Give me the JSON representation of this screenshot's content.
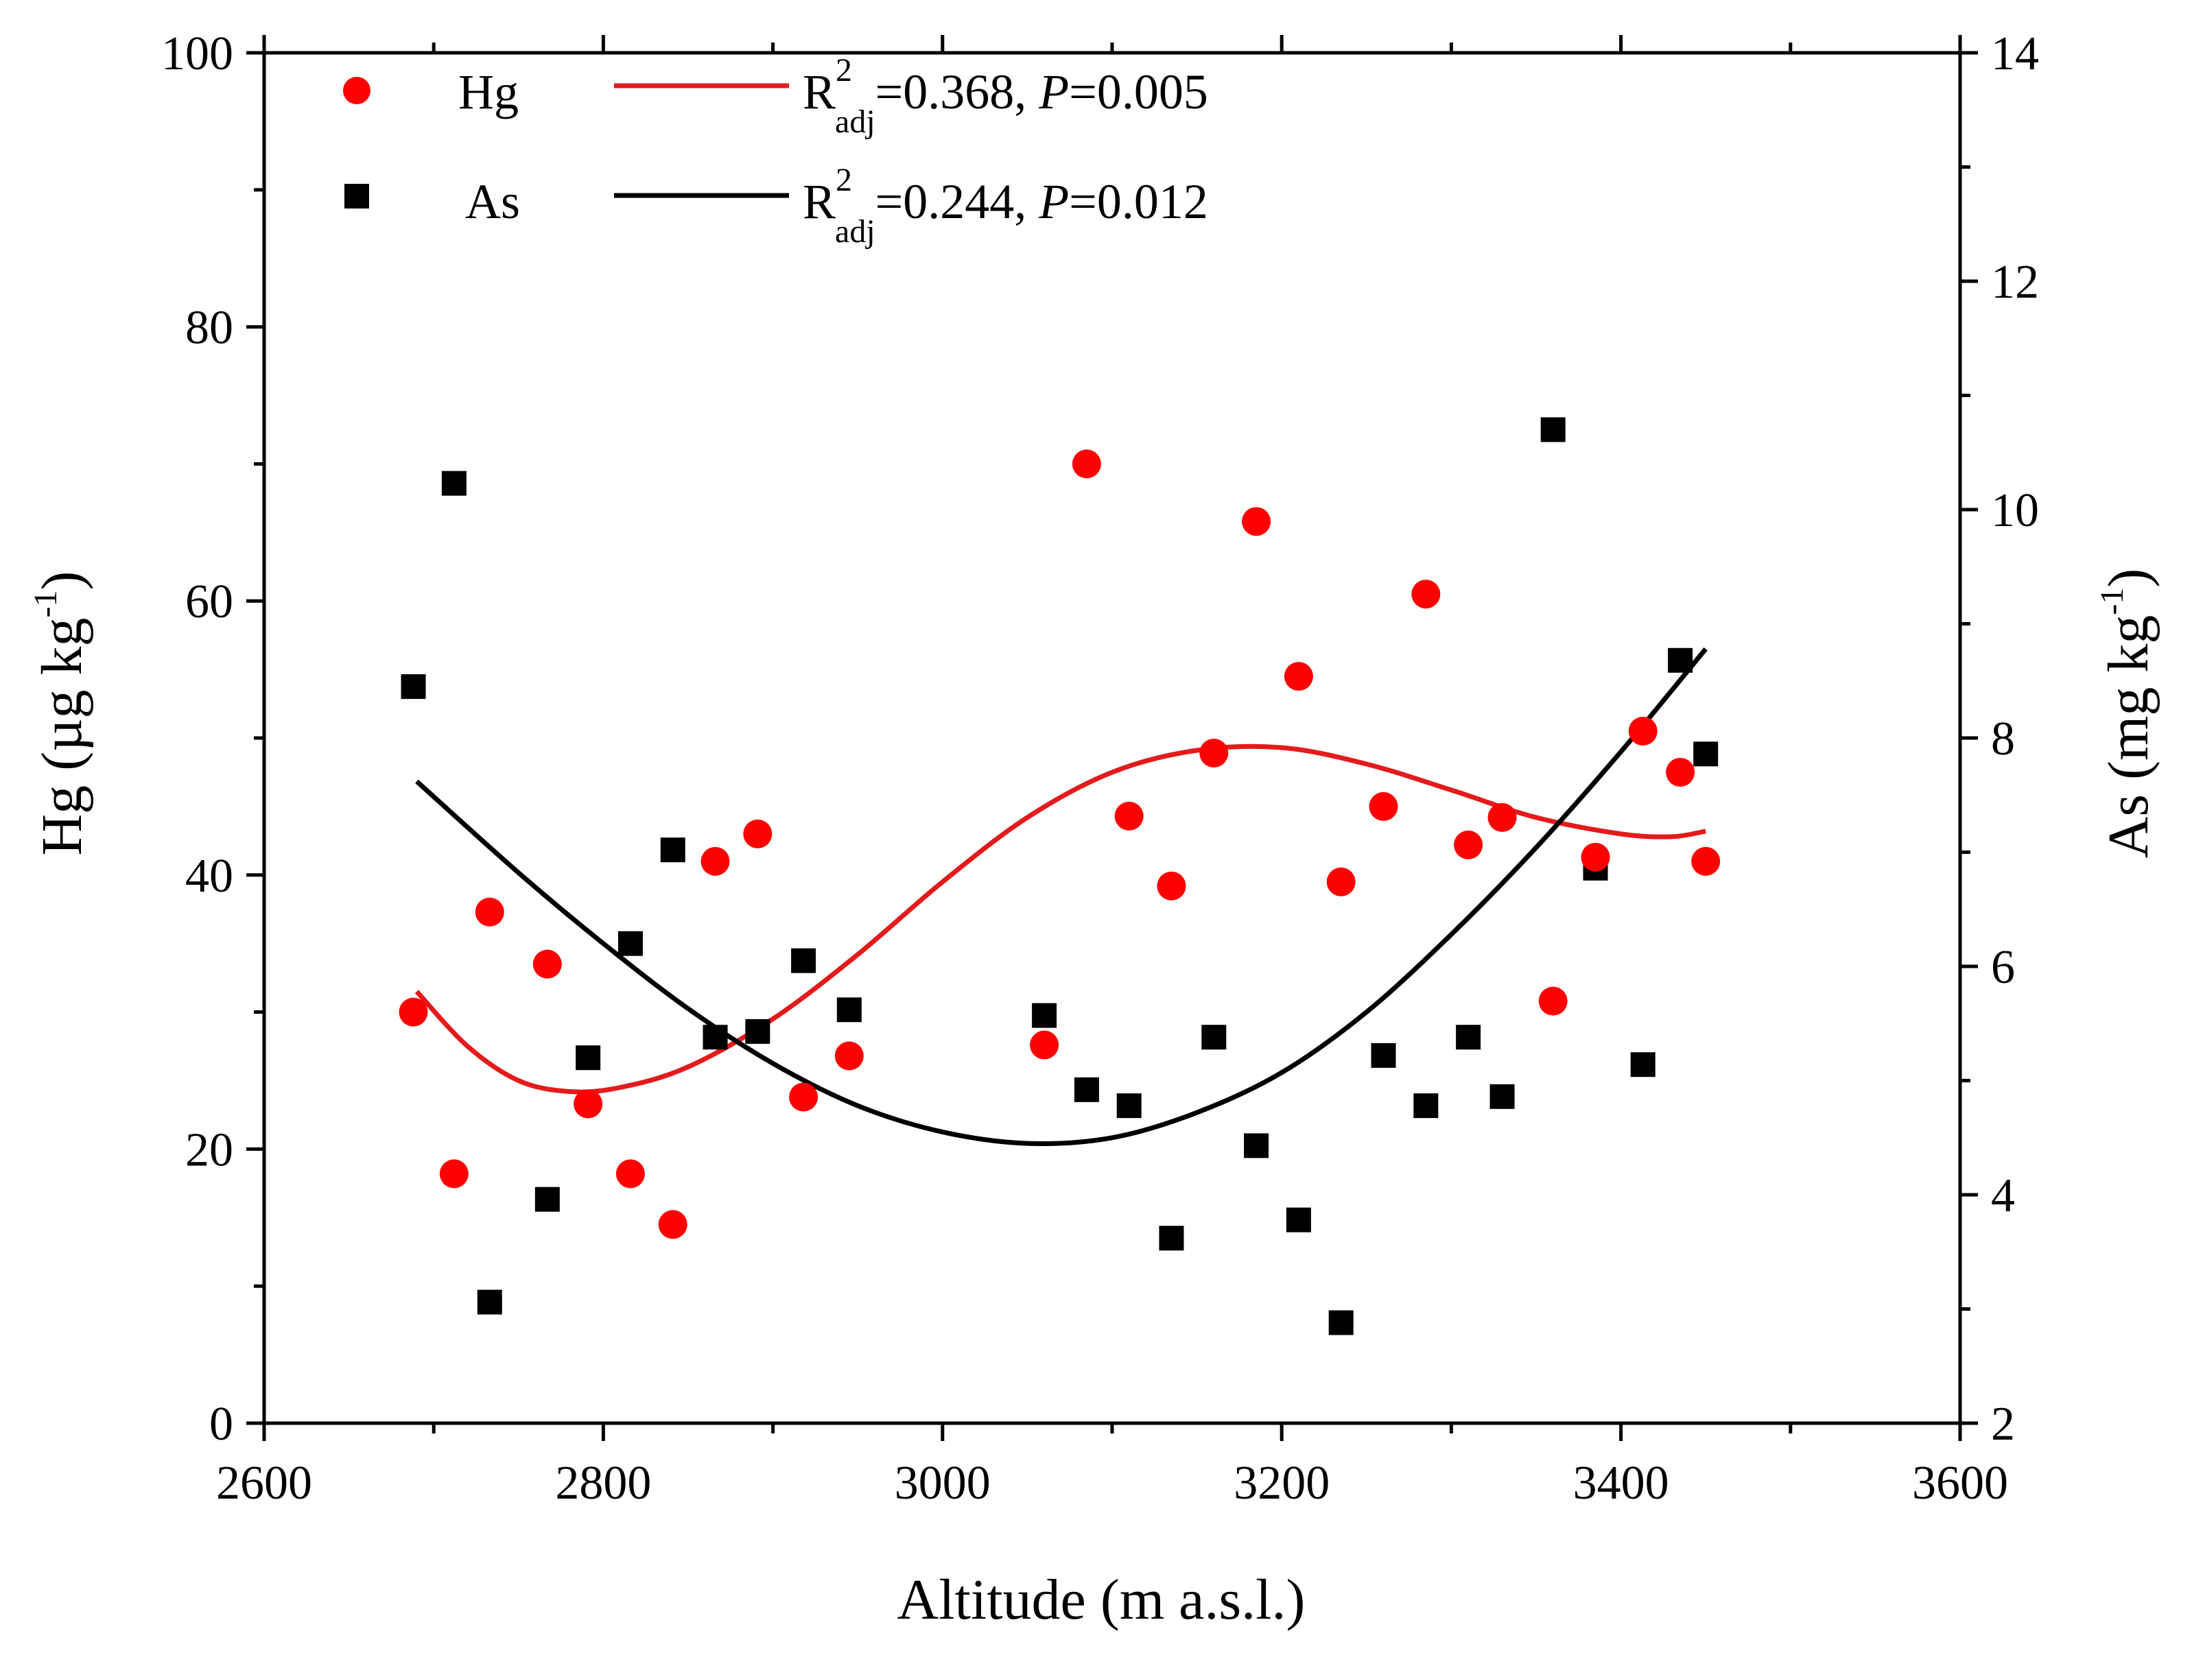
{
  "chart_data": {
    "type": "scatter",
    "title": "",
    "xlabel": "Altitude (m a.s.l.)",
    "ylabel_left": {
      "main": "Hg (µg kg",
      "sup": "-1",
      "close": ")"
    },
    "ylabel_right": {
      "main": "As (mg kg",
      "sup": "-1",
      "close": ")"
    },
    "xlim": [
      2600,
      3600
    ],
    "ylim_left": [
      0,
      100
    ],
    "ylim_right": [
      2,
      14
    ],
    "x_ticks": [
      2600,
      2800,
      3000,
      3200,
      3400,
      3600
    ],
    "y_left_ticks": [
      0,
      20,
      40,
      60,
      80,
      100
    ],
    "y_right_ticks": [
      2,
      4,
      6,
      8,
      10,
      12,
      14
    ],
    "grid": false,
    "legend_position": "top-left",
    "colors": {
      "Hg": "#ff0000",
      "As": "#000000",
      "fit_Hg": "#e41a1c",
      "fit_As": "#000000"
    },
    "legend": [
      {
        "series": "Hg",
        "marker": "circle",
        "label": "Hg",
        "fit_r": "R",
        "fit_sup": "2",
        "fit_sub": "adj",
        "fit_mid": "=0.368, ",
        "fit_p": "P",
        "fit_end": "=0.005"
      },
      {
        "series": "As",
        "marker": "square",
        "label": "As",
        "fit_r": "R",
        "fit_sup": "2",
        "fit_sub": "adj",
        "fit_mid": "=0.244, ",
        "fit_p": "P",
        "fit_end": "=0.012"
      }
    ],
    "series": [
      {
        "name": "Hg",
        "axis": "left",
        "marker": "circle",
        "x": [
          2688,
          2712,
          2733,
          2767,
          2791,
          2816,
          2841,
          2866,
          2891,
          2918,
          2945,
          3060,
          3085,
          3110,
          3135,
          3160,
          3185,
          3210,
          3235,
          3260,
          3285,
          3310,
          3330,
          3360,
          3385,
          3413,
          3435,
          3450
        ],
        "y": [
          30,
          18.2,
          37.3,
          33.5,
          23.3,
          18.2,
          14.5,
          41,
          43,
          23.8,
          26.8,
          27.6,
          70,
          44.3,
          39.2,
          48.9,
          65.8,
          54.5,
          39.5,
          45,
          60.5,
          42.2,
          44.2,
          30.8,
          41.3,
          50.5,
          47.5,
          41
        ]
      },
      {
        "name": "As",
        "axis": "right",
        "marker": "square",
        "x": [
          2688,
          2712,
          2733,
          2767,
          2791,
          2816,
          2841,
          2866,
          2891,
          2918,
          2945,
          3060,
          3085,
          3110,
          3135,
          3160,
          3185,
          3210,
          3235,
          3260,
          3285,
          3310,
          3330,
          3360,
          3385,
          3413,
          3435,
          3450
        ],
        "y": [
          8.45,
          10.23,
          3.06,
          3.96,
          5.2,
          6.2,
          7.02,
          5.38,
          5.43,
          6.05,
          5.62,
          5.57,
          4.92,
          4.78,
          3.62,
          5.38,
          4.43,
          3.78,
          2.88,
          5.22,
          4.78,
          5.38,
          4.86,
          10.7,
          6.86,
          5.14,
          8.68,
          7.86
        ]
      }
    ],
    "fits": [
      {
        "name": "Hg fit",
        "axis": "left",
        "x": [
          2690,
          2720,
          2750,
          2780,
          2810,
          2850,
          2900,
          2950,
          3000,
          3050,
          3100,
          3150,
          3200,
          3250,
          3300,
          3350,
          3400,
          3430,
          3450
        ],
        "y": [
          31.5,
          27.5,
          25,
          24.2,
          24.5,
          26,
          29.5,
          34.2,
          39.5,
          44.2,
          47.5,
          49.1,
          49.3,
          48.1,
          46.2,
          44.2,
          43,
          42.8,
          43.2
        ]
      },
      {
        "name": "As fit",
        "axis": "right",
        "x": [
          2690,
          2750,
          2800,
          2850,
          2900,
          2950,
          3000,
          3050,
          3100,
          3150,
          3200,
          3250,
          3300,
          3350,
          3400,
          3450
        ],
        "y": [
          7.62,
          6.82,
          6.2,
          5.63,
          5.15,
          4.78,
          4.55,
          4.45,
          4.5,
          4.72,
          5.07,
          5.6,
          6.28,
          7.04,
          7.88,
          8.78
        ]
      }
    ]
  }
}
